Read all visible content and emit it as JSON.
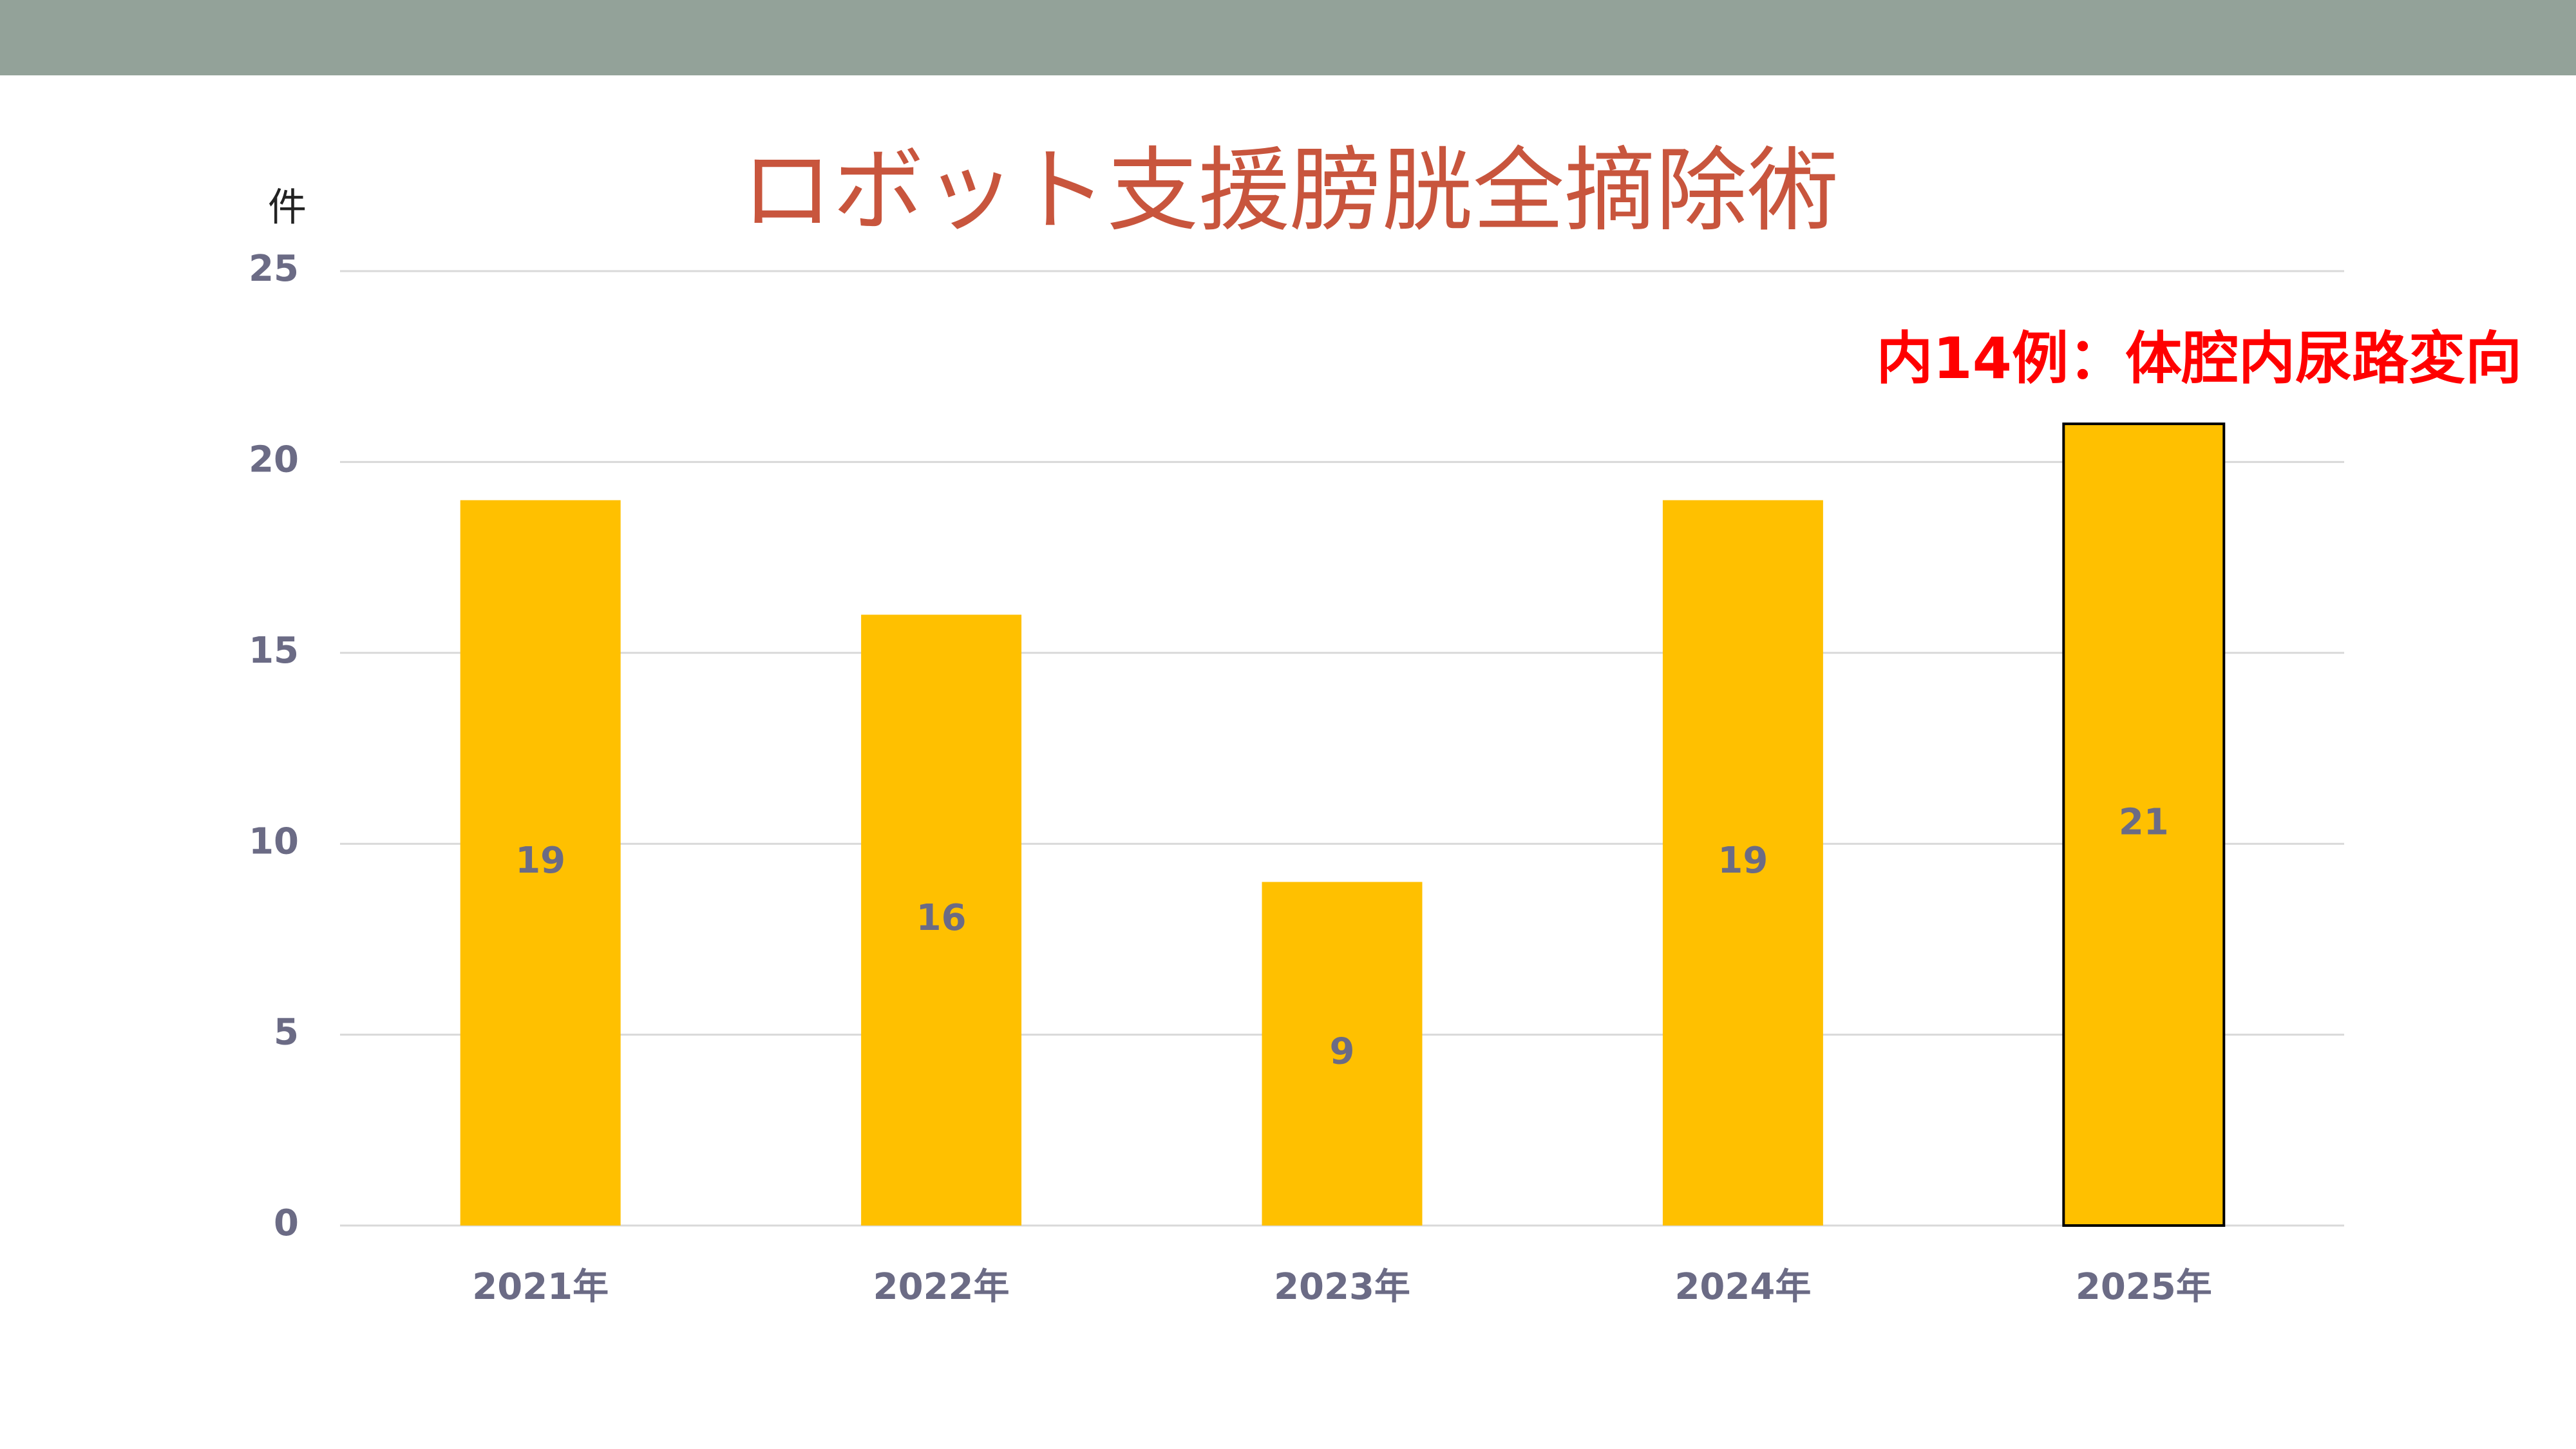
{
  "chart_data": {
    "type": "bar",
    "title": "ロボット支援膀胱全摘除術",
    "y_axis_label": "件",
    "annotation": "内14例：体腔内尿路変向",
    "categories": [
      "2021年",
      "2022年",
      "2023年",
      "2024年",
      "2025年"
    ],
    "values": [
      19,
      16,
      9,
      19,
      21
    ],
    "color": "#ffc000",
    "edgecolors": [
      null,
      null,
      null,
      null,
      "#000000"
    ],
    "ylim": [
      0,
      25
    ],
    "yticks": [
      0,
      5,
      10,
      15,
      20,
      25
    ],
    "grid": true
  }
}
